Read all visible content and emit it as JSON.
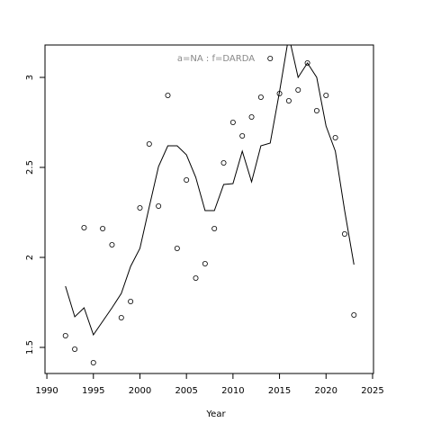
{
  "chart_data": {
    "type": "line",
    "title": "a=NA  :  f=DARDA",
    "xlabel": "Year",
    "x": [
      1992,
      1993,
      1994,
      1995,
      1996,
      1997,
      1998,
      1999,
      2000,
      2001,
      2002,
      2003,
      2004,
      2005,
      2006,
      2007,
      2008,
      2009,
      2010,
      2011,
      2012,
      2013,
      2014,
      2015,
      2016,
      2017,
      2018,
      2019,
      2020,
      2021,
      2022,
      2023
    ],
    "series": [
      {
        "style": "points",
        "color": "#000000",
        "values": [
          1.565,
          1.49,
          2.165,
          1.415,
          2.16,
          2.07,
          1.665,
          1.755,
          2.275,
          2.63,
          2.285,
          2.9,
          2.05,
          2.43,
          1.885,
          1.965,
          2.16,
          2.525,
          2.75,
          2.675,
          2.78,
          2.89,
          3.105,
          2.91,
          2.87,
          2.93,
          3.08,
          2.815,
          2.9,
          2.665,
          2.13,
          1.68
        ]
      },
      {
        "style": "line",
        "color": "#000000",
        "values": [
          1.84,
          1.67,
          1.72,
          1.57,
          1.645,
          1.72,
          1.8,
          1.95,
          2.05,
          2.28,
          2.505,
          2.62,
          2.62,
          2.57,
          2.445,
          2.26,
          2.26,
          2.405,
          2.41,
          2.59,
          2.42,
          2.62,
          2.635,
          2.92,
          3.23,
          3.0,
          3.08,
          3.0,
          2.73,
          2.59,
          2.26,
          1.96
        ]
      }
    ],
    "xlim": [
      1989.8,
      2025.1
    ],
    "xticks": [
      1990,
      1995,
      2000,
      2005,
      2010,
      2015,
      2020,
      2025
    ],
    "ylim": [
      1.355,
      3.18
    ],
    "yticks": [
      1.5,
      2.0,
      2.5,
      3.0
    ]
  }
}
